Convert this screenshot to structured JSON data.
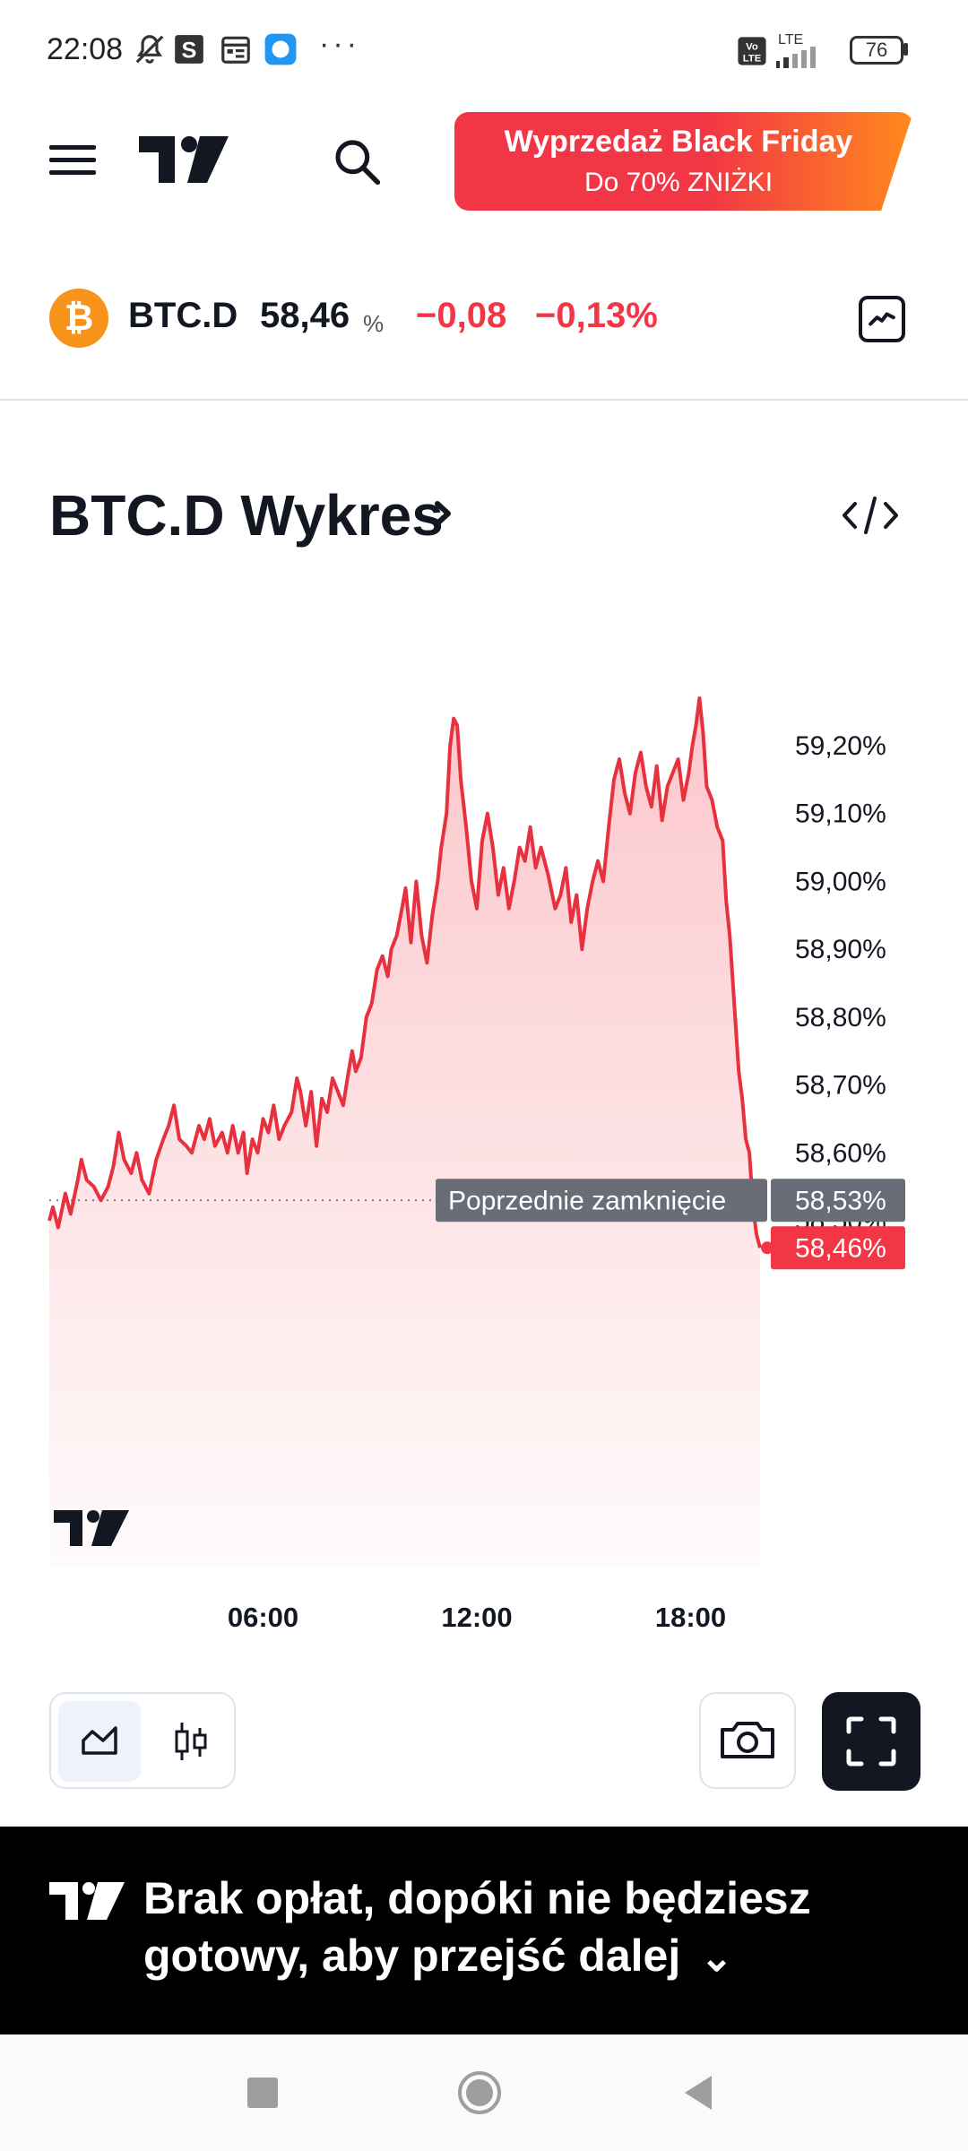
{
  "status_bar": {
    "time": "22:08",
    "dots": "···",
    "lte": "LTE",
    "battery": "76",
    "icons": [
      "bell-off-icon",
      "s-app-icon",
      "calendar-icon",
      "chat-icon",
      "volte-icon",
      "signal-icon",
      "battery-icon"
    ]
  },
  "header": {
    "logo": "tradingview-logo",
    "promo_line1": "Wyprzedaż Black Friday",
    "promo_line2": "Do 70% ZNIŻKI"
  },
  "ticker": {
    "symbol": "BTC.D",
    "price": "58,46",
    "unit": "%",
    "change": "−0,08",
    "change_percent": "−0,13%",
    "coin_glyph": "₿"
  },
  "chart_title": "BTC.D Wykres",
  "chart_data": {
    "type": "area",
    "color": "#f23645",
    "y_ticks": [
      "59,20%",
      "59,10%",
      "59,00%",
      "58,90%",
      "58,80%",
      "58,70%",
      "58,60%",
      "58,50%"
    ],
    "y_tick_values": [
      59.2,
      59.1,
      59.0,
      58.9,
      58.8,
      58.7,
      58.6,
      58.5
    ],
    "x_ticks": [
      "06:00",
      "12:00",
      "18:00"
    ],
    "x_tick_hours": [
      6,
      12,
      18
    ],
    "x_range_hours": [
      0,
      20
    ],
    "ylim": [
      58.45,
      59.35
    ],
    "previous_close_label": "Poprzednie zamknięcie",
    "previous_close_value": "58,53%",
    "previous_close": 58.53,
    "last_value_label": "58,46%",
    "last_value": 58.46,
    "points": [
      [
        0.0,
        58.5
      ],
      [
        0.1,
        58.52
      ],
      [
        0.25,
        58.49
      ],
      [
        0.45,
        58.54
      ],
      [
        0.6,
        58.51
      ],
      [
        0.8,
        58.56
      ],
      [
        0.9,
        58.59
      ],
      [
        1.05,
        58.56
      ],
      [
        1.25,
        58.55
      ],
      [
        1.45,
        58.53
      ],
      [
        1.65,
        58.55
      ],
      [
        1.8,
        58.58
      ],
      [
        1.95,
        58.63
      ],
      [
        2.1,
        58.59
      ],
      [
        2.3,
        58.57
      ],
      [
        2.45,
        58.6
      ],
      [
        2.6,
        58.56
      ],
      [
        2.8,
        58.54
      ],
      [
        3.0,
        58.59
      ],
      [
        3.2,
        58.62
      ],
      [
        3.35,
        58.64
      ],
      [
        3.5,
        58.67
      ],
      [
        3.65,
        58.62
      ],
      [
        3.85,
        58.61
      ],
      [
        4.0,
        58.6
      ],
      [
        4.2,
        58.64
      ],
      [
        4.35,
        58.62
      ],
      [
        4.5,
        58.65
      ],
      [
        4.65,
        58.61
      ],
      [
        4.85,
        58.63
      ],
      [
        5.0,
        58.6
      ],
      [
        5.15,
        58.64
      ],
      [
        5.3,
        58.6
      ],
      [
        5.45,
        58.63
      ],
      [
        5.55,
        58.57
      ],
      [
        5.7,
        58.62
      ],
      [
        5.85,
        58.6
      ],
      [
        6.0,
        58.65
      ],
      [
        6.15,
        58.63
      ],
      [
        6.3,
        58.67
      ],
      [
        6.45,
        58.62
      ],
      [
        6.6,
        58.64
      ],
      [
        6.8,
        58.66
      ],
      [
        6.95,
        58.71
      ],
      [
        7.05,
        58.69
      ],
      [
        7.2,
        58.64
      ],
      [
        7.35,
        58.69
      ],
      [
        7.5,
        58.61
      ],
      [
        7.65,
        58.68
      ],
      [
        7.8,
        58.66
      ],
      [
        7.95,
        58.71
      ],
      [
        8.1,
        58.69
      ],
      [
        8.25,
        58.67
      ],
      [
        8.4,
        58.72
      ],
      [
        8.5,
        58.75
      ],
      [
        8.6,
        58.72
      ],
      [
        8.75,
        58.74
      ],
      [
        8.9,
        58.8
      ],
      [
        9.05,
        58.82
      ],
      [
        9.2,
        58.87
      ],
      [
        9.35,
        58.89
      ],
      [
        9.5,
        58.86
      ],
      [
        9.6,
        58.9
      ],
      [
        9.75,
        58.92
      ],
      [
        9.9,
        58.96
      ],
      [
        10.0,
        58.99
      ],
      [
        10.15,
        58.91
      ],
      [
        10.3,
        59.0
      ],
      [
        10.45,
        58.92
      ],
      [
        10.6,
        58.88
      ],
      [
        10.75,
        58.95
      ],
      [
        10.9,
        59.0
      ],
      [
        11.0,
        59.05
      ],
      [
        11.15,
        59.1
      ],
      [
        11.25,
        59.2
      ],
      [
        11.35,
        59.24
      ],
      [
        11.45,
        59.23
      ],
      [
        11.55,
        59.15
      ],
      [
        11.7,
        59.08
      ],
      [
        11.85,
        59.0
      ],
      [
        12.0,
        58.96
      ],
      [
        12.15,
        59.06
      ],
      [
        12.3,
        59.1
      ],
      [
        12.45,
        59.05
      ],
      [
        12.6,
        58.98
      ],
      [
        12.75,
        59.02
      ],
      [
        12.9,
        58.96
      ],
      [
        13.05,
        59.0
      ],
      [
        13.2,
        59.05
      ],
      [
        13.35,
        59.03
      ],
      [
        13.5,
        59.08
      ],
      [
        13.65,
        59.02
      ],
      [
        13.8,
        59.05
      ],
      [
        14.0,
        59.01
      ],
      [
        14.2,
        58.96
      ],
      [
        14.35,
        58.98
      ],
      [
        14.5,
        59.02
      ],
      [
        14.65,
        58.94
      ],
      [
        14.8,
        58.98
      ],
      [
        14.95,
        58.9
      ],
      [
        15.1,
        58.96
      ],
      [
        15.25,
        59.0
      ],
      [
        15.4,
        59.03
      ],
      [
        15.55,
        59.0
      ],
      [
        15.7,
        59.08
      ],
      [
        15.85,
        59.15
      ],
      [
        16.0,
        59.18
      ],
      [
        16.15,
        59.13
      ],
      [
        16.3,
        59.1
      ],
      [
        16.45,
        59.16
      ],
      [
        16.6,
        59.19
      ],
      [
        16.75,
        59.14
      ],
      [
        16.9,
        59.11
      ],
      [
        17.05,
        59.17
      ],
      [
        17.2,
        59.09
      ],
      [
        17.35,
        59.14
      ],
      [
        17.5,
        59.16
      ],
      [
        17.65,
        59.18
      ],
      [
        17.8,
        59.12
      ],
      [
        17.95,
        59.16
      ],
      [
        18.05,
        59.2
      ],
      [
        18.15,
        59.23
      ],
      [
        18.25,
        59.27
      ],
      [
        18.35,
        59.22
      ],
      [
        18.45,
        59.14
      ],
      [
        18.6,
        59.12
      ],
      [
        18.75,
        59.08
      ],
      [
        18.9,
        59.06
      ],
      [
        19.0,
        58.97
      ],
      [
        19.1,
        58.92
      ],
      [
        19.25,
        58.8
      ],
      [
        19.35,
        58.72
      ],
      [
        19.45,
        58.68
      ],
      [
        19.55,
        58.62
      ],
      [
        19.65,
        58.6
      ],
      [
        19.75,
        58.52
      ],
      [
        19.85,
        58.48
      ],
      [
        19.95,
        58.46
      ]
    ]
  },
  "controls": {
    "area_icon": "area-chart-icon",
    "candle_icon": "candlestick-icon",
    "camera_icon": "camera-icon",
    "fullscreen_icon": "fullscreen-icon"
  },
  "banner": {
    "text": "Brak opłat, dopóki nie będziesz gotowy, aby przejść dalej",
    "chevron": "⌄"
  },
  "nav": {
    "icons": [
      "recents-square-icon",
      "home-circle-icon",
      "back-triangle-icon"
    ]
  }
}
